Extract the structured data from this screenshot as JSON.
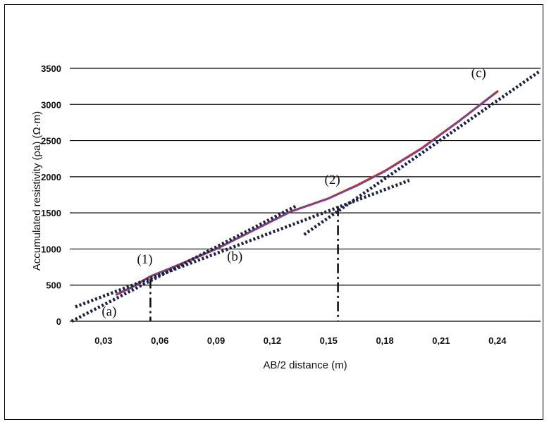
{
  "chart_data": {
    "type": "line",
    "xlabel": "AB/2 distance (m)",
    "ylabel": "Accumulated resistivity (ρa) (Ω·m)",
    "xlim": [
      0.012,
      0.263
    ],
    "ylim": [
      0,
      3500
    ],
    "x_ticks": [
      "0,03",
      "0,06",
      "0,09",
      "0,12",
      "0,15",
      "0,18",
      "0,21",
      "0,24"
    ],
    "x_tick_values": [
      0.03,
      0.06,
      0.09,
      0.12,
      0.15,
      0.18,
      0.21,
      0.24
    ],
    "y_ticks": [
      0,
      500,
      1000,
      1500,
      2000,
      2500,
      3000,
      3500
    ],
    "grid": "horizontal",
    "series": [
      {
        "color": "#e8211b",
        "style": "solid",
        "points": [
          [
            0.037,
            370
          ],
          [
            0.045,
            470
          ],
          [
            0.055,
            620
          ],
          [
            0.07,
            780
          ],
          [
            0.09,
            1000
          ],
          [
            0.11,
            1260
          ],
          [
            0.13,
            1520
          ],
          [
            0.15,
            1700
          ],
          [
            0.165,
            1880
          ],
          [
            0.18,
            2080
          ],
          [
            0.2,
            2400
          ],
          [
            0.22,
            2780
          ],
          [
            0.24,
            3180
          ]
        ]
      },
      {
        "color": "#2b5fd0",
        "style": "dotted",
        "points": [
          [
            0.037,
            370
          ],
          [
            0.045,
            460
          ],
          [
            0.055,
            620
          ],
          [
            0.07,
            780
          ],
          [
            0.09,
            1000
          ],
          [
            0.11,
            1260
          ],
          [
            0.13,
            1520
          ],
          [
            0.15,
            1700
          ],
          [
            0.165,
            1870
          ],
          [
            0.18,
            2070
          ],
          [
            0.2,
            2390
          ],
          [
            0.22,
            2780
          ],
          [
            0.24,
            3180
          ]
        ]
      }
    ],
    "tangent_lines": [
      {
        "id": "a",
        "from": [
          0.013,
          0
        ],
        "to": [
          0.133,
          1600
        ]
      },
      {
        "id": "b",
        "from": [
          0.015,
          200
        ],
        "to": [
          0.193,
          1950
        ]
      },
      {
        "id": "c",
        "from": [
          0.137,
          1200
        ],
        "to": [
          0.262,
          3450
        ]
      }
    ],
    "inflection_points": [
      {
        "label": "(1)",
        "x": 0.055,
        "y": 590,
        "ann_x": 0.052,
        "ann_y": 800
      },
      {
        "label": "(2)",
        "x": 0.155,
        "y": 1590,
        "ann_x": 0.152,
        "ann_y": 1900
      }
    ],
    "segment_labels": [
      {
        "label": "(a)",
        "x": 0.033,
        "y": 80
      },
      {
        "label": "(b)",
        "x": 0.1,
        "y": 840
      },
      {
        "label": "(c)",
        "x": 0.23,
        "y": 3380
      }
    ],
    "colors": {
      "curve": "#e8211b",
      "curve_dots": "#2b5fd0",
      "tangent": "#1c2140",
      "grid": "#000000"
    }
  }
}
